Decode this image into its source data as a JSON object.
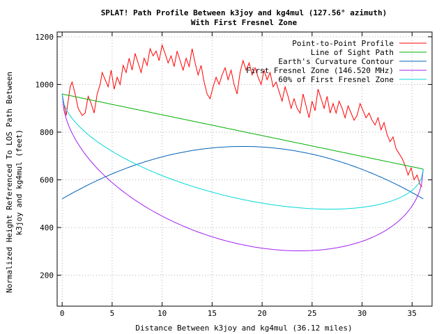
{
  "chart_data": {
    "type": "line",
    "title": "SPLAT! Path Profile Between k3joy and kg4mul (127.56° azimuth)",
    "subtitle": "With First Fresnel Zone",
    "xlabel": "Distance Between k3joy and kg4mul (36.12 miles)",
    "ylabel_line1": "Normalized Height Referenced To LOS Path Between",
    "ylabel_line2": "k3joy and kg4mul (feet)",
    "xlim": [
      -0.5,
      37
    ],
    "ylim": [
      70,
      1220
    ],
    "xticks": [
      0,
      5,
      10,
      15,
      20,
      25,
      30,
      35
    ],
    "yticks": [
      200,
      400,
      600,
      800,
      1000,
      1200
    ],
    "grid": true,
    "legend_position": "top-right",
    "series": [
      {
        "name": "Point-to-Point Profile",
        "color": "#ff0000",
        "x": [
          0,
          0.4,
          0.8,
          1.0,
          1.3,
          1.6,
          2.0,
          2.3,
          2.6,
          2.9,
          3.2,
          3.5,
          3.8,
          4.0,
          4.3,
          4.6,
          4.9,
          5.2,
          5.5,
          5.8,
          6.1,
          6.4,
          6.7,
          7.0,
          7.3,
          7.6,
          7.9,
          8.2,
          8.5,
          8.8,
          9.1,
          9.4,
          9.7,
          10.0,
          10.3,
          10.6,
          10.9,
          11.2,
          11.5,
          11.8,
          12.1,
          12.4,
          12.7,
          13.0,
          13.3,
          13.6,
          13.9,
          14.2,
          14.5,
          14.8,
          15.1,
          15.4,
          15.7,
          16.0,
          16.3,
          16.6,
          16.9,
          17.2,
          17.5,
          17.8,
          18.1,
          18.4,
          18.7,
          19.0,
          19.3,
          19.6,
          19.9,
          20.2,
          20.5,
          20.8,
          21.1,
          21.4,
          21.7,
          22.0,
          22.3,
          22.6,
          22.9,
          23.2,
          23.5,
          23.8,
          24.1,
          24.4,
          24.7,
          25.0,
          25.3,
          25.6,
          25.9,
          26.2,
          26.5,
          26.8,
          27.1,
          27.4,
          27.7,
          28.0,
          28.3,
          28.6,
          28.9,
          29.2,
          29.5,
          29.8,
          30.1,
          30.4,
          30.7,
          31.0,
          31.3,
          31.6,
          31.9,
          32.2,
          32.5,
          32.8,
          33.1,
          33.4,
          33.7,
          34.0,
          34.3,
          34.6,
          34.9,
          35.2,
          35.5,
          35.8,
          36.0
        ],
        "y": [
          960,
          870,
          990,
          1010,
          960,
          900,
          870,
          880,
          950,
          920,
          880,
          960,
          1000,
          1050,
          1020,
          990,
          1060,
          980,
          1030,
          1000,
          1080,
          1050,
          1110,
          1060,
          1130,
          1090,
          1050,
          1110,
          1080,
          1150,
          1120,
          1140,
          1100,
          1165,
          1130,
          1090,
          1120,
          1075,
          1140,
          1100,
          1060,
          1110,
          1075,
          1150,
          1090,
          1040,
          1080,
          1010,
          960,
          940,
          990,
          1030,
          1000,
          1040,
          1070,
          1020,
          1060,
          1000,
          960,
          1050,
          1100,
          1060,
          1090,
          1040,
          1070,
          1030,
          1000,
          1060,
          1020,
          1050,
          990,
          1010,
          970,
          930,
          990,
          950,
          900,
          940,
          900,
          880,
          960,
          910,
          860,
          930,
          890,
          980,
          940,
          900,
          950,
          880,
          920,
          880,
          930,
          900,
          860,
          910,
          880,
          850,
          870,
          920,
          890,
          860,
          880,
          850,
          830,
          860,
          810,
          840,
          790,
          760,
          780,
          730,
          710,
          690,
          660,
          620,
          650,
          600,
          620,
          580,
          570
        ],
        "width": 1
      }
    ],
    "x_span": 36.12,
    "los": {
      "name": "Line of Sight Path",
      "color": "#00b000",
      "y_start": 960,
      "y_end": 645
    },
    "earth_curvature": {
      "name": "Earth's Curvature Contour",
      "color": "#0060b8",
      "y_start": 520,
      "y_end": 520,
      "y_peak": 740
    },
    "fresnel": {
      "name": "First Fresnel Zone (146.520 MHz)",
      "color": "#a020f0",
      "radius_max": 475
    },
    "fresnel60": {
      "name": "60% of First Fresnel Zone",
      "color": "#00d8d8",
      "fraction": 0.6
    }
  }
}
